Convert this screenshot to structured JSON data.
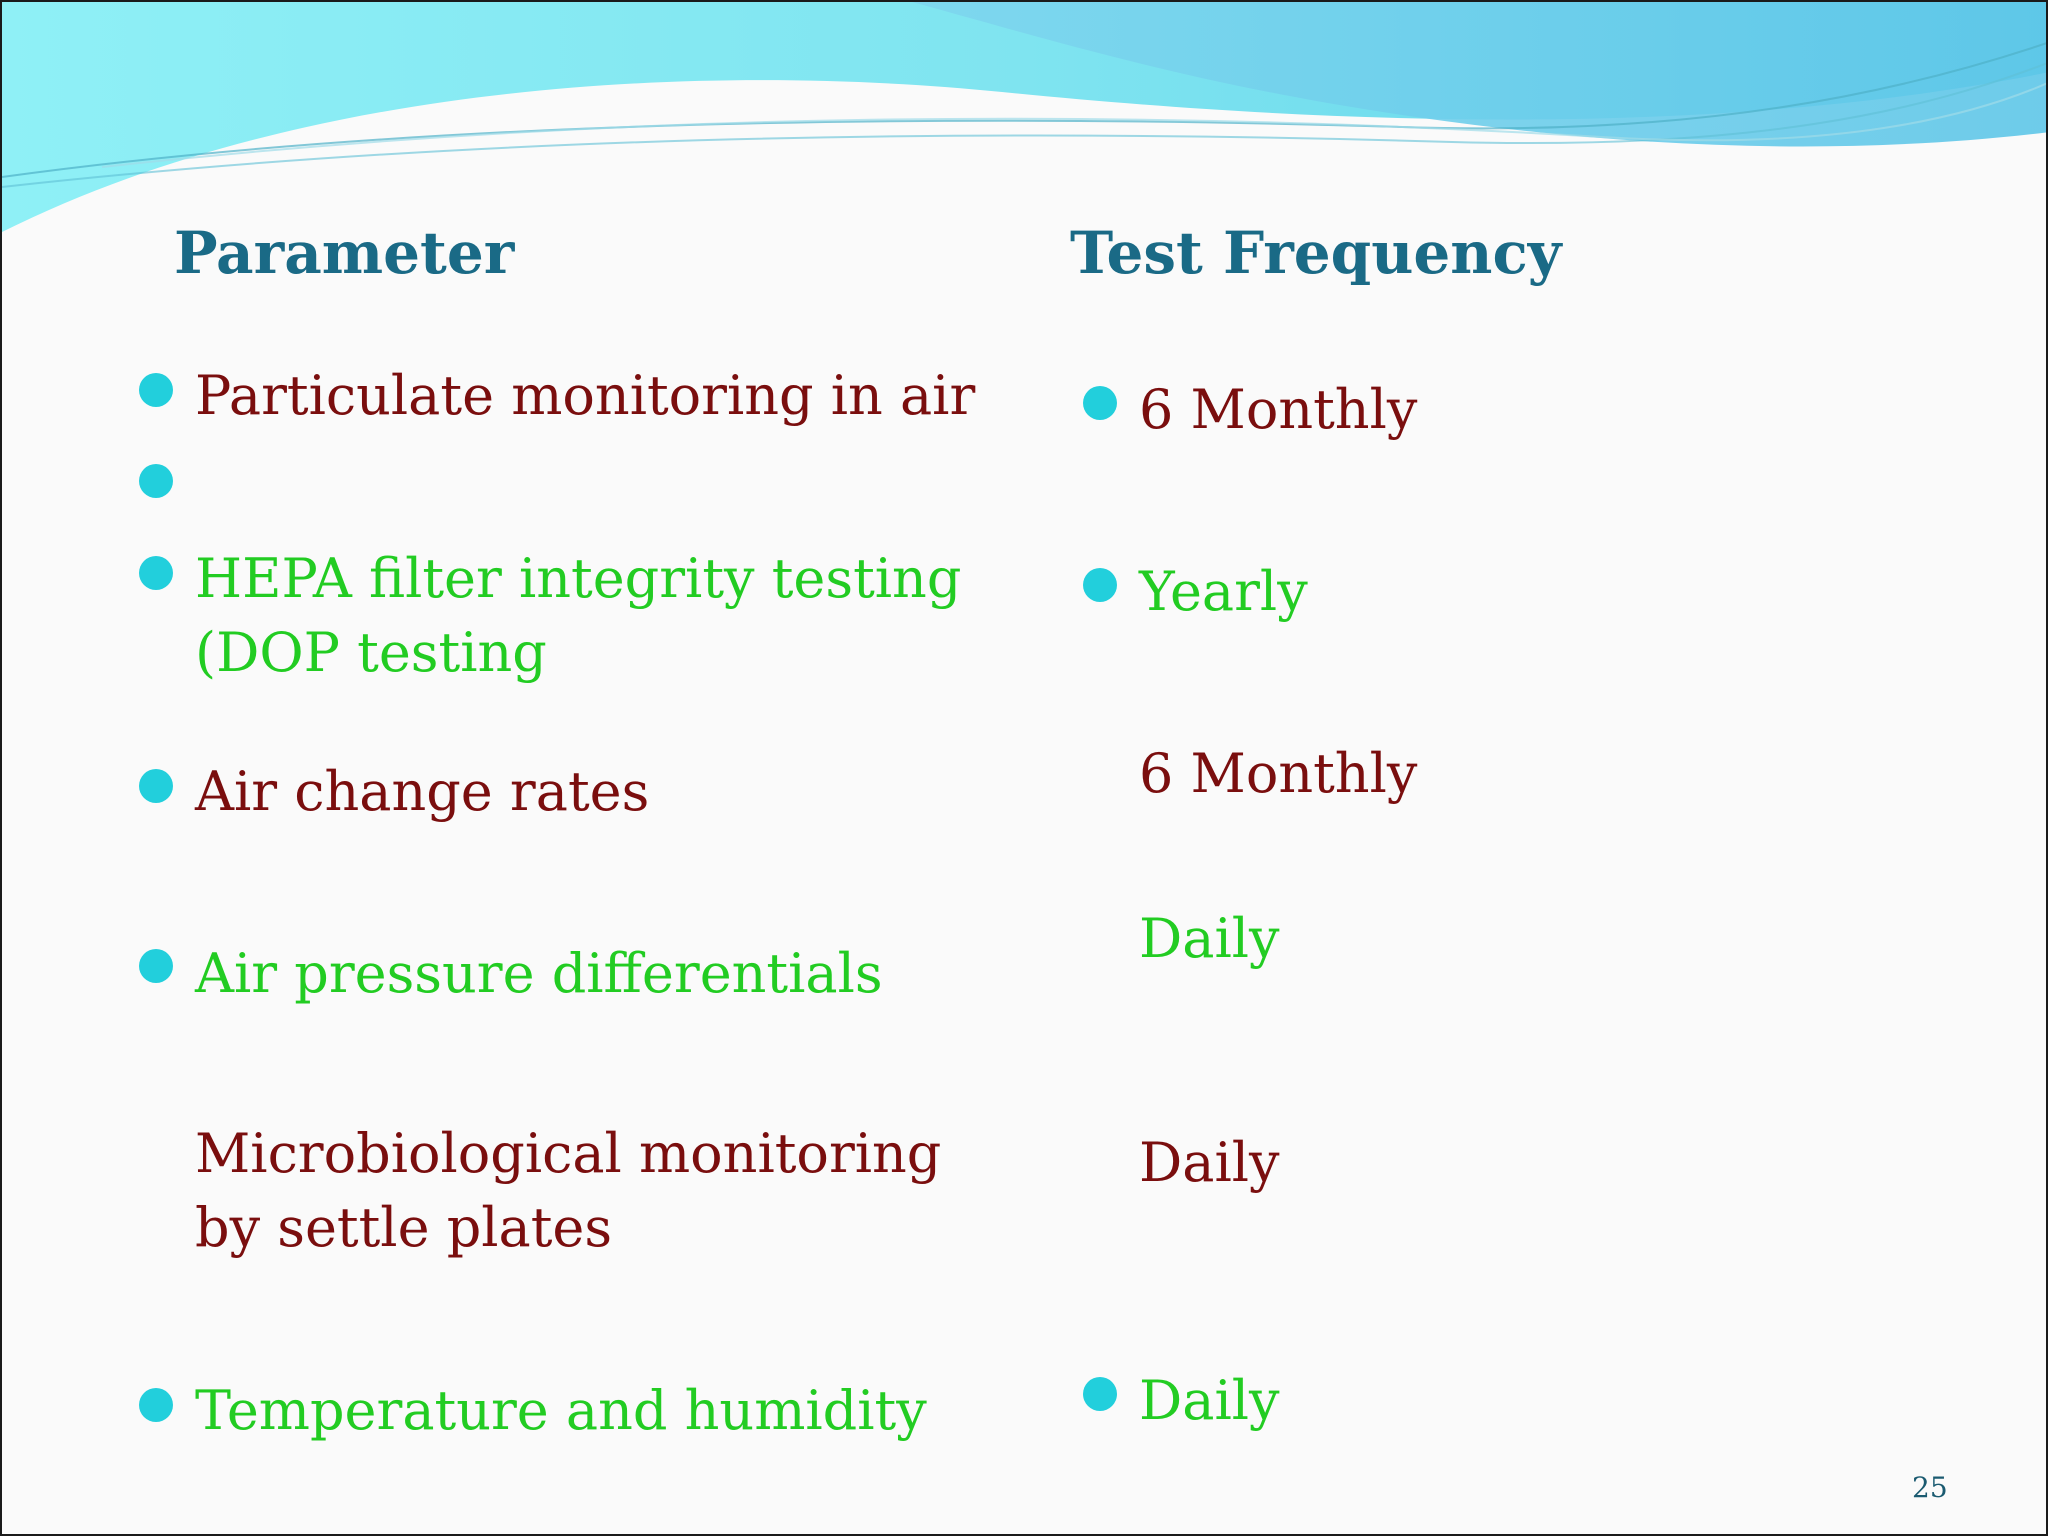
{
  "theme": {
    "heading_color": "#1a6a86",
    "maroon": "#7a0e0e",
    "green": "#22cc22",
    "bullet_color": "#22cfdc",
    "page_number_color": "#1a5a70"
  },
  "headings": {
    "parameter": "Parameter",
    "frequency": "Test Frequency"
  },
  "parameters": [
    {
      "text": "Particulate monitoring in air",
      "color": "maroon",
      "bullet": true
    },
    {
      "text": "",
      "color": "maroon",
      "bullet": true
    },
    {
      "lines": [
        "HEPA filter integrity testing",
        "(DOP testing"
      ],
      "color": "green",
      "bullet": true
    },
    {
      "text": "Air change rates",
      "color": "maroon",
      "bullet": true
    },
    {
      "text": "Air pressure differentials",
      "color": "green",
      "bullet": true
    },
    {
      "lines": [
        "Microbiological monitoring",
        "by settle plates"
      ],
      "color": "maroon",
      "bullet": false
    },
    {
      "text": "Temperature and humidity",
      "color": "green",
      "bullet": true
    }
  ],
  "frequencies": [
    {
      "text": "6 Monthly",
      "color": "maroon",
      "bullet": true
    },
    {
      "text": "Yearly",
      "color": "green",
      "bullet": true
    },
    {
      "text": "6 Monthly",
      "color": "maroon",
      "bullet": false
    },
    {
      "text": "Daily",
      "color": "green",
      "bullet": false
    },
    {
      "text": "Daily",
      "color": "maroon",
      "bullet": false
    },
    {
      "text": "Daily",
      "color": "green",
      "bullet": true
    }
  ],
  "page_number": "25"
}
